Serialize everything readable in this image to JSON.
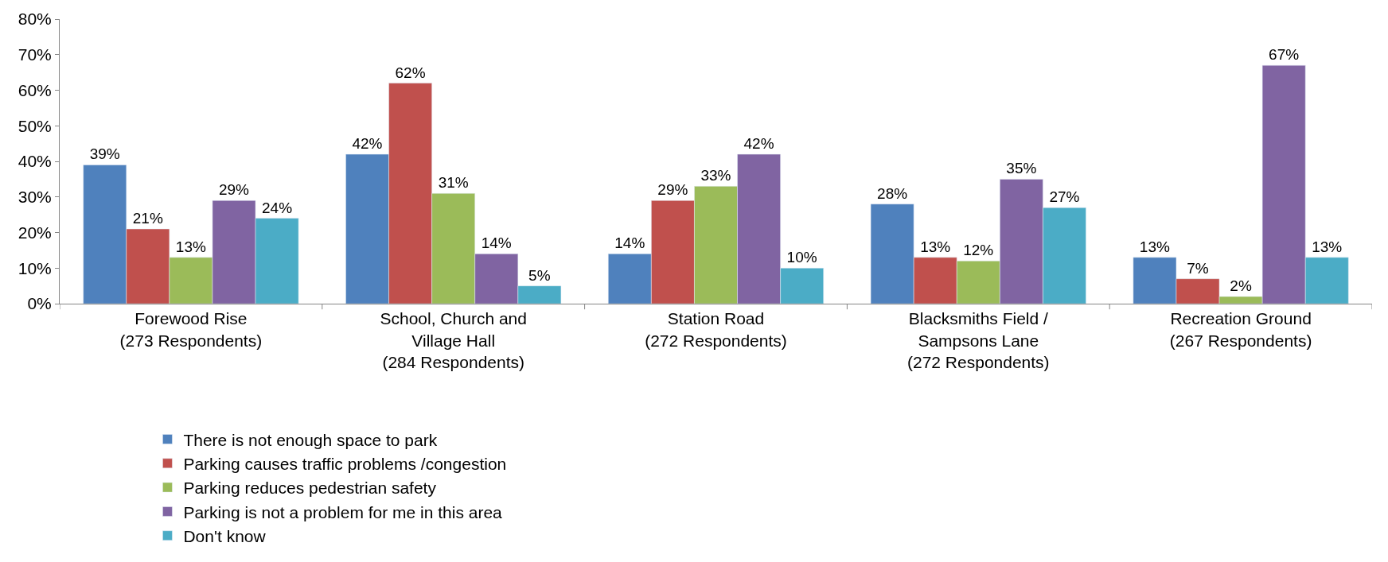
{
  "chart_data": {
    "type": "bar",
    "categories": [
      "Forewood Rise\n(273 Respondents)",
      "School, Church and\nVillage Hall\n(284 Respondents)",
      "Station Road\n(272 Respondents)",
      "Blacksmiths Field /\nSampsons Lane\n(272 Respondents)",
      "Recreation Ground\n(267 Respondents)"
    ],
    "series": [
      {
        "name": "There is not enough space to park",
        "color": "#4f81bd",
        "values": [
          39,
          42,
          14,
          28,
          13
        ],
        "value_labels": [
          "39%",
          "42%",
          "14%",
          "28%",
          "13%"
        ]
      },
      {
        "name": "Parking causes traffic problems /congestion",
        "color": "#c0504d",
        "values": [
          21,
          62,
          29,
          13,
          7
        ],
        "value_labels": [
          "21%",
          "62%",
          "29%",
          "13%",
          "7%"
        ]
      },
      {
        "name": "Parking reduces pedestrian safety",
        "color": "#9bbb59",
        "values": [
          13,
          31,
          33,
          12,
          2
        ],
        "value_labels": [
          "13%",
          "31%",
          "33%",
          "12%",
          "2%"
        ]
      },
      {
        "name": "Parking is not a problem for me in this area",
        "color": "#8064a2",
        "values": [
          29,
          14,
          42,
          35,
          67
        ],
        "value_labels": [
          "29%",
          "14%",
          "42%",
          "35%",
          "67%"
        ]
      },
      {
        "name": "Don't know",
        "color": "#4bacc6",
        "values": [
          24,
          5,
          10,
          27,
          13
        ],
        "value_labels": [
          "24%",
          "5%",
          "10%",
          "27%",
          "13%"
        ]
      }
    ],
    "ylim": [
      0,
      80
    ],
    "yticks": [
      {
        "value": 0,
        "label": "0%"
      },
      {
        "value": 10,
        "label": "10%"
      },
      {
        "value": 20,
        "label": "20%"
      },
      {
        "value": 30,
        "label": "30%"
      },
      {
        "value": 40,
        "label": "40%"
      },
      {
        "value": 50,
        "label": "50%"
      },
      {
        "value": 60,
        "label": "60%"
      },
      {
        "value": 70,
        "label": "70%"
      },
      {
        "value": 80,
        "label": "80%"
      }
    ],
    "legend": "bottom"
  }
}
